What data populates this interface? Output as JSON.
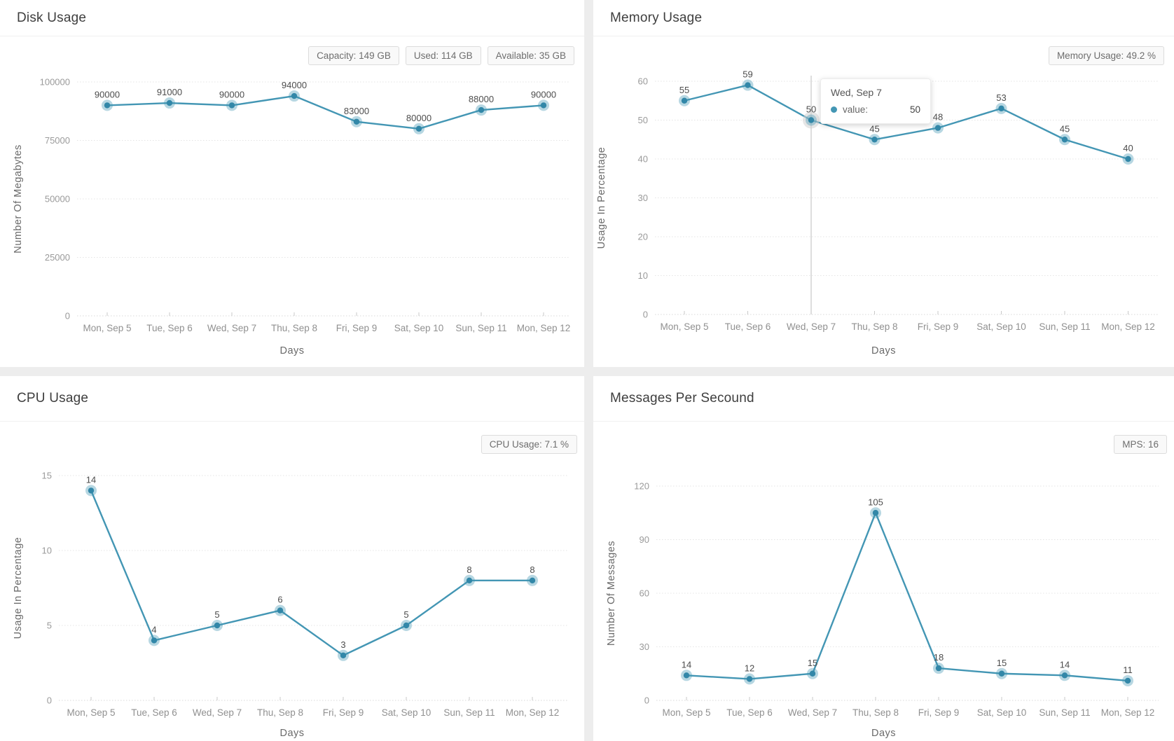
{
  "page": {
    "background": "#ededed"
  },
  "colors": {
    "line": "#4396b4",
    "point_core": "#3287a8",
    "point_halo": "#4396b4",
    "hover_halo": "#d2d2d2",
    "grid": "#e4e4e4",
    "axis_line": "#d8d8d8",
    "tick_mark": "#c9c9c9",
    "tick_label": "#9a9a9a",
    "category_label": "#909090",
    "data_label": "#4d4d4d",
    "axis_title": "#6a6a6a",
    "crosshair": "#bdbdbd",
    "badge_text": "#6e6e6e"
  },
  "chart_data": [
    {
      "type": "line",
      "title": "Disk Usage",
      "badges": [
        "Capacity: 149 GB",
        "Used: 114 GB",
        "Available: 35 GB"
      ],
      "categories": [
        "Mon, Sep 5",
        "Tue, Sep 6",
        "Wed, Sep 7",
        "Thu, Sep 8",
        "Fri, Sep 9",
        "Sat, Sep 10",
        "Sun, Sep 11",
        "Mon, Sep 12"
      ],
      "values": [
        90000,
        91000,
        90000,
        94000,
        83000,
        80000,
        88000,
        90000
      ],
      "xlabel": "Days",
      "ylabel": "Number Of Megabytes",
      "ylim": [
        0,
        100000
      ],
      "yticks": [
        0,
        25000,
        50000,
        75000,
        100000
      ],
      "grid": true,
      "legend": "none"
    },
    {
      "type": "line",
      "title": "Memory Usage",
      "badges": [
        "Memory Usage: 49.2 %"
      ],
      "categories": [
        "Mon, Sep 5",
        "Tue, Sep 6",
        "Wed, Sep 7",
        "Thu, Sep 8",
        "Fri, Sep 9",
        "Sat, Sep 10",
        "Sun, Sep 11",
        "Mon, Sep 12"
      ],
      "values": [
        55,
        59,
        50,
        45,
        48,
        53,
        45,
        40
      ],
      "xlabel": "Days",
      "ylabel": "Usage In Percentage",
      "ylim": [
        0,
        60
      ],
      "yticks": [
        0,
        10,
        20,
        30,
        40,
        50,
        60
      ],
      "grid": true,
      "legend": "none",
      "tooltip": {
        "title": "Wed, Sep 7",
        "series_label": "value:",
        "value": "50",
        "highlight_index": 2
      }
    },
    {
      "type": "line",
      "title": "CPU Usage",
      "badges": [
        "CPU Usage: 7.1 %"
      ],
      "categories": [
        "Mon, Sep 5",
        "Tue, Sep 6",
        "Wed, Sep 7",
        "Thu, Sep 8",
        "Fri, Sep 9",
        "Sat, Sep 10",
        "Sun, Sep 11",
        "Mon, Sep 12"
      ],
      "values": [
        14,
        4,
        5,
        6,
        3,
        5,
        8,
        8
      ],
      "xlabel": "Days",
      "ylabel": "Usage In Percentage",
      "ylim": [
        0,
        15
      ],
      "yticks": [
        0,
        5,
        10,
        15
      ],
      "grid": true,
      "legend": "none"
    },
    {
      "type": "line",
      "title": "Messages Per Secound",
      "badges": [
        "MPS: 16"
      ],
      "categories": [
        "Mon, Sep 5",
        "Tue, Sep 6",
        "Wed, Sep 7",
        "Thu, Sep 8",
        "Fri, Sep 9",
        "Sat, Sep 10",
        "Sun, Sep 11",
        "Mon, Sep 12"
      ],
      "values": [
        14,
        12,
        15,
        105,
        18,
        15,
        14,
        11
      ],
      "xlabel": "Days",
      "ylabel": "Number Of Messages",
      "ylim": [
        0,
        120
      ],
      "yticks": [
        0,
        30,
        60,
        90,
        120
      ],
      "grid": true,
      "legend": "none"
    }
  ]
}
